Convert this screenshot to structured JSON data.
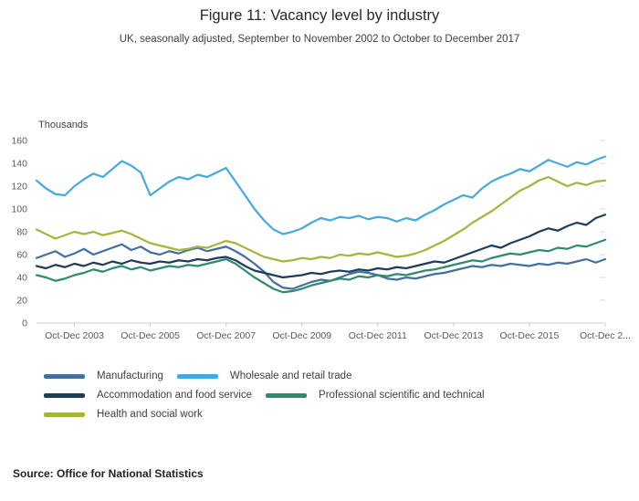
{
  "chart_data": {
    "type": "line",
    "title": "Figure 11: Vacancy level by industry",
    "subtitle": "UK, seasonally adjusted, September to November 2002 to October to December 2017",
    "xlabel": "",
    "ylabel": "Thousands",
    "ylim": [
      0,
      160
    ],
    "y_ticks": [
      0,
      20,
      40,
      60,
      80,
      100,
      120,
      140,
      160
    ],
    "grid": false,
    "legend_position": "bottom",
    "n_points": 61,
    "x_range_note": "quarterly points from Sep-Nov 2002 to Oct-Dec 2017",
    "x_tick_labels": [
      "Oct-Dec 2003",
      "Oct-Dec 2005",
      "Oct-Dec 2007",
      "Oct-Dec 2009",
      "Oct-Dec 2011",
      "Oct-Dec 2013",
      "Oct-Dec 2015",
      "Oct-Dec 2..."
    ],
    "x_tick_indices": [
      4,
      12,
      20,
      28,
      36,
      44,
      52,
      60
    ],
    "axis_color": "#cccccc",
    "tick_label_color": "#595959",
    "series": [
      {
        "name": "Manufacturing",
        "color": "#44709d",
        "values": [
          57,
          60,
          63,
          58,
          61,
          65,
          60,
          63,
          66,
          69,
          64,
          67,
          62,
          60,
          63,
          61,
          64,
          66,
          63,
          65,
          67,
          63,
          58,
          52,
          45,
          36,
          31,
          30,
          33,
          36,
          38,
          37,
          40,
          43,
          45,
          44,
          42,
          39,
          38,
          40,
          39,
          41,
          43,
          44,
          46,
          48,
          50,
          49,
          51,
          50,
          52,
          51,
          50,
          52,
          51,
          53,
          52,
          54,
          56,
          53,
          56
        ]
      },
      {
        "name": "Wholesale and retail trade",
        "color": "#45a9dd",
        "values": [
          125,
          118,
          113,
          112,
          120,
          126,
          131,
          128,
          135,
          142,
          138,
          132,
          112,
          118,
          124,
          128,
          126,
          130,
          128,
          132,
          136,
          124,
          112,
          100,
          90,
          82,
          78,
          80,
          83,
          88,
          92,
          90,
          93,
          92,
          94,
          91,
          93,
          92,
          89,
          92,
          90,
          95,
          99,
          104,
          108,
          112,
          110,
          118,
          124,
          128,
          131,
          135,
          133,
          138,
          143,
          140,
          137,
          141,
          139,
          143,
          146
        ]
      },
      {
        "name": "Accommodation and food service",
        "color": "#1d3d5c",
        "values": [
          50,
          48,
          51,
          49,
          52,
          50,
          53,
          51,
          54,
          52,
          55,
          53,
          52,
          54,
          53,
          55,
          54,
          56,
          55,
          57,
          58,
          55,
          50,
          46,
          44,
          42,
          40,
          41,
          42,
          44,
          43,
          45,
          46,
          45,
          47,
          46,
          48,
          47,
          49,
          48,
          50,
          52,
          54,
          53,
          56,
          59,
          62,
          65,
          68,
          66,
          70,
          73,
          76,
          80,
          83,
          81,
          85,
          88,
          86,
          92,
          95
        ]
      },
      {
        "name": "Professional scientific and technical",
        "color": "#2e8b70",
        "values": [
          42,
          40,
          37,
          39,
          42,
          44,
          47,
          45,
          48,
          50,
          47,
          49,
          46,
          48,
          50,
          49,
          51,
          50,
          52,
          54,
          56,
          52,
          46,
          40,
          35,
          30,
          27,
          28,
          30,
          33,
          35,
          37,
          39,
          38,
          41,
          40,
          42,
          41,
          43,
          42,
          44,
          46,
          47,
          49,
          51,
          53,
          55,
          54,
          57,
          59,
          61,
          60,
          62,
          64,
          63,
          66,
          65,
          68,
          67,
          70,
          73
        ]
      },
      {
        "name": "Health and social work",
        "color": "#a3b63c",
        "values": [
          82,
          78,
          74,
          77,
          80,
          78,
          80,
          77,
          79,
          81,
          78,
          74,
          70,
          68,
          66,
          64,
          65,
          67,
          66,
          69,
          72,
          70,
          66,
          62,
          58,
          56,
          54,
          55,
          57,
          56,
          58,
          57,
          60,
          59,
          61,
          60,
          62,
          60,
          58,
          59,
          61,
          64,
          68,
          72,
          77,
          82,
          88,
          93,
          98,
          104,
          110,
          116,
          120,
          125,
          128,
          124,
          120,
          123,
          121,
          124,
          125
        ]
      }
    ]
  },
  "legend_rows": [
    [
      0,
      1
    ],
    [
      2,
      3
    ],
    [
      4
    ]
  ],
  "footer": {
    "source": "Source: Office for National Statistics"
  }
}
